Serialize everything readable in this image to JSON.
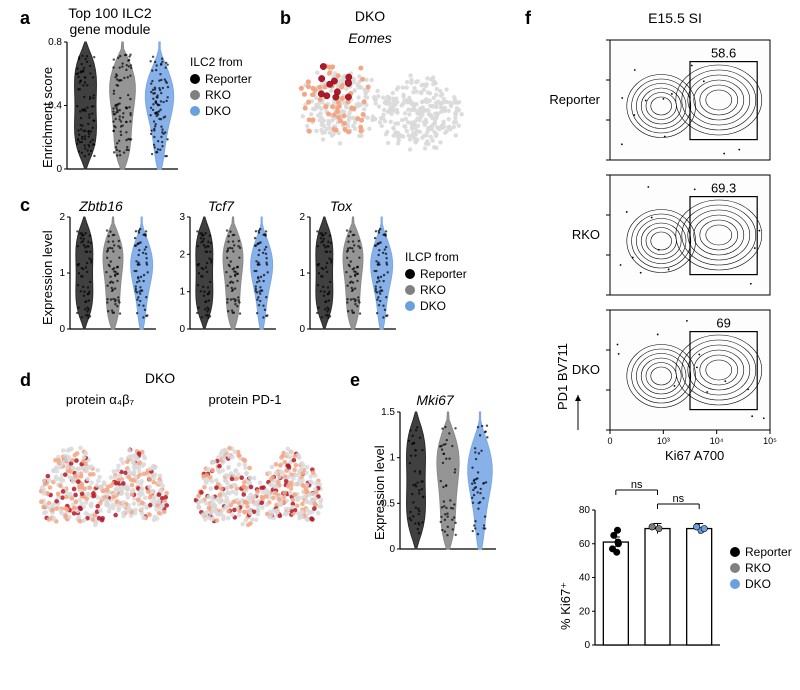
{
  "colors": {
    "reporter": "#2b2b2b",
    "rko": "#8a8a8a",
    "dko": "#7aa8e6",
    "dot": "#000000",
    "scatter_low": "#d9d9d9",
    "scatter_mid": "#f4a582",
    "scatter_high": "#b2182b",
    "axis": "#000000",
    "bar_fill": "#ffffff",
    "bar_stroke": "#000000",
    "grid": "#e0e0e0",
    "background": "#fdfdfd",
    "reporter_point": "#000000",
    "rko_point": "#808080",
    "dko_point": "#6aa0e0"
  },
  "fonts": {
    "panel_label": 18,
    "title": 14,
    "axis": 13,
    "legend": 12,
    "tick": 10
  },
  "panel_a": {
    "label": "a",
    "title": "Top 100 ILC2\ngene module",
    "ylabel": "Enrichment score",
    "categories": [
      "Reporter",
      "RKO",
      "DKO"
    ],
    "ylim": [
      0.0,
      0.8
    ],
    "yticks": [
      0.0,
      0.4,
      0.8
    ],
    "n_points": 90,
    "violin_colors": [
      "#2b2b2b",
      "#8a8a8a",
      "#7aa8e6"
    ],
    "legend_title": "ILC2 from",
    "legend_items": [
      {
        "label": "Reporter",
        "color": "#000000"
      },
      {
        "label": "RKO",
        "color": "#808080"
      },
      {
        "label": "DKO",
        "color": "#6aa0e0"
      }
    ]
  },
  "panel_b": {
    "label": "b",
    "title": "DKO",
    "gene": "Eomes",
    "n_points": 450,
    "n_highlight": 12,
    "colors": {
      "low": "#d9d9d9",
      "mid": "#f4a582",
      "high": "#b2182b"
    }
  },
  "panel_c": {
    "label": "c",
    "ylabel": "Expression level",
    "genes": [
      "Zbtb16",
      "Tcf7",
      "Tox"
    ],
    "ylims": [
      [
        0,
        2
      ],
      [
        0,
        3
      ],
      [
        0,
        2
      ]
    ],
    "yticks": [
      [
        0,
        1,
        2
      ],
      [
        0,
        1,
        2,
        3
      ],
      [
        0,
        1,
        2
      ]
    ],
    "categories": [
      "Reporter",
      "RKO",
      "DKO"
    ],
    "violin_colors": [
      "#2b2b2b",
      "#8a8a8a",
      "#7aa8e6"
    ],
    "n_points": 60,
    "legend_title": "ILCP from",
    "legend_items": [
      {
        "label": "Reporter",
        "color": "#000000"
      },
      {
        "label": "RKO",
        "color": "#808080"
      },
      {
        "label": "DKO",
        "color": "#6aa0e0"
      }
    ]
  },
  "panel_d": {
    "label": "d",
    "title": "DKO",
    "subtitles": [
      "protein α₄β₇",
      "protein PD-1"
    ],
    "n_points": 500,
    "colors": {
      "low": "#d9d9d9",
      "mid": "#f4a582",
      "high": "#b2182b"
    }
  },
  "panel_e": {
    "label": "e",
    "gene": "Mki67",
    "ylabel": "Expression level",
    "ylim": [
      0.0,
      1.5
    ],
    "yticks": [
      0.0,
      0.5,
      1.0,
      1.5
    ],
    "categories": [
      "Reporter",
      "RKO",
      "DKO"
    ],
    "violin_colors": [
      "#2b2b2b",
      "#8a8a8a",
      "#7aa8e6"
    ],
    "n_points": 45
  },
  "panel_f": {
    "label": "f",
    "title": "E15.5 SI",
    "rows": [
      "Reporter",
      "RKO",
      "DKO"
    ],
    "gate_values": [
      58.6,
      69.3,
      69.0
    ],
    "y_axis_label": "PD1 BV711",
    "x_axis_label": "Ki67 A700",
    "facs_ticks": [
      "0",
      "10³",
      "10⁴",
      "10⁵"
    ],
    "bar_chart": {
      "ylabel": "% Ki67⁺",
      "ylim": [
        0,
        80
      ],
      "yticks": [
        0,
        20,
        40,
        60,
        80
      ],
      "categories": [
        "Reporter",
        "RKO",
        "DKO"
      ],
      "means": [
        61,
        69,
        69
      ],
      "points": {
        "Reporter": [
          55,
          57,
          60,
          61,
          65,
          68
        ],
        "RKO": [
          69,
          70
        ],
        "DKO": [
          68,
          69,
          70
        ]
      },
      "point_colors": {
        "Reporter": "#000000",
        "RKO": "#808080",
        "DKO": "#6aa0e0"
      },
      "ns_bars": [
        [
          0,
          1
        ],
        [
          1,
          2
        ]
      ],
      "ns_label": "ns"
    },
    "legend_items": [
      {
        "label": "Reporter",
        "color": "#000000"
      },
      {
        "label": "RKO",
        "color": "#808080"
      },
      {
        "label": "DKO",
        "color": "#6aa0e0"
      }
    ]
  }
}
